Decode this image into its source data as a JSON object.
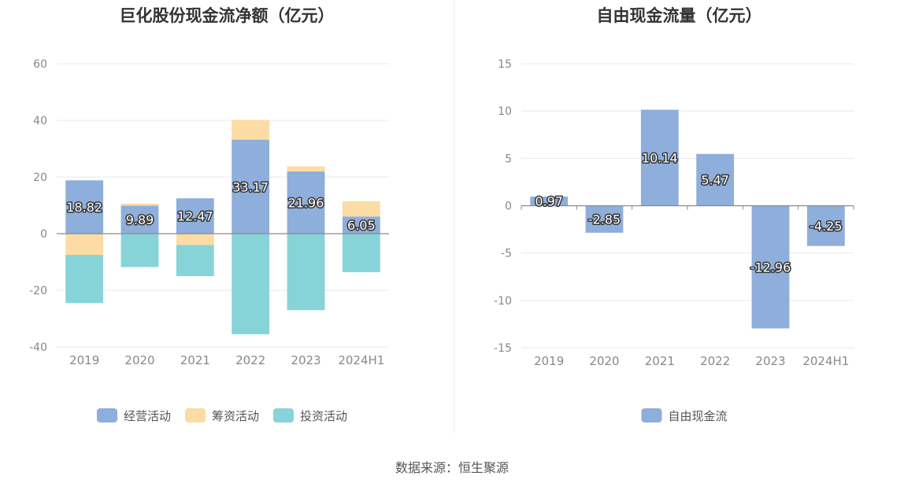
{
  "source_text": "数据来源：恒生聚源",
  "colors": {
    "operating": "#8eaedb",
    "financing": "#fcdca4",
    "investing": "#86d4d8",
    "free_cash_flow": "#8eaedb",
    "grid": "#e6e9f2",
    "axis_label": "#888888",
    "zero_line": "#8a8a8a"
  },
  "chart_data": [
    {
      "type": "bar",
      "stacked": true,
      "title": "巨化股份现金流净额（亿元）",
      "categories": [
        "2019",
        "2020",
        "2021",
        "2022",
        "2023",
        "2024H1"
      ],
      "ylim": [
        -40,
        60
      ],
      "yticks": [
        60,
        40,
        20,
        0,
        -20,
        -40
      ],
      "grid": true,
      "legend_position": "bottom-center",
      "series": [
        {
          "name": "经营活动",
          "key": "operating",
          "values": [
            18.82,
            9.89,
            12.47,
            33.17,
            21.96,
            6.05
          ],
          "labels": [
            "18.82",
            "9.89",
            "12.47",
            "33.17",
            "21.96",
            "6.05"
          ]
        },
        {
          "name": "筹资活动",
          "key": "financing",
          "values": [
            -7.5,
            0.7,
            -4.0,
            7.0,
            1.8,
            5.4
          ]
        },
        {
          "name": "投资活动",
          "key": "investing",
          "values": [
            -17.0,
            -11.8,
            -11.0,
            -35.5,
            -27.0,
            -13.6
          ]
        }
      ]
    },
    {
      "type": "bar",
      "title": "自由现金流量（亿元）",
      "categories": [
        "2019",
        "2020",
        "2021",
        "2022",
        "2023",
        "2024H1"
      ],
      "ylim": [
        -15,
        15
      ],
      "yticks": [
        15,
        10,
        5,
        0,
        -5,
        -10,
        -15
      ],
      "grid": true,
      "legend_position": "bottom-center",
      "series": [
        {
          "name": "自由现金流",
          "key": "free_cash_flow",
          "values": [
            0.97,
            -2.85,
            10.14,
            5.47,
            -12.96,
            -4.25
          ],
          "labels": [
            "0.97",
            "-2.85",
            "10.14",
            "5.47",
            "-12.96",
            "-4.25"
          ]
        }
      ]
    }
  ]
}
